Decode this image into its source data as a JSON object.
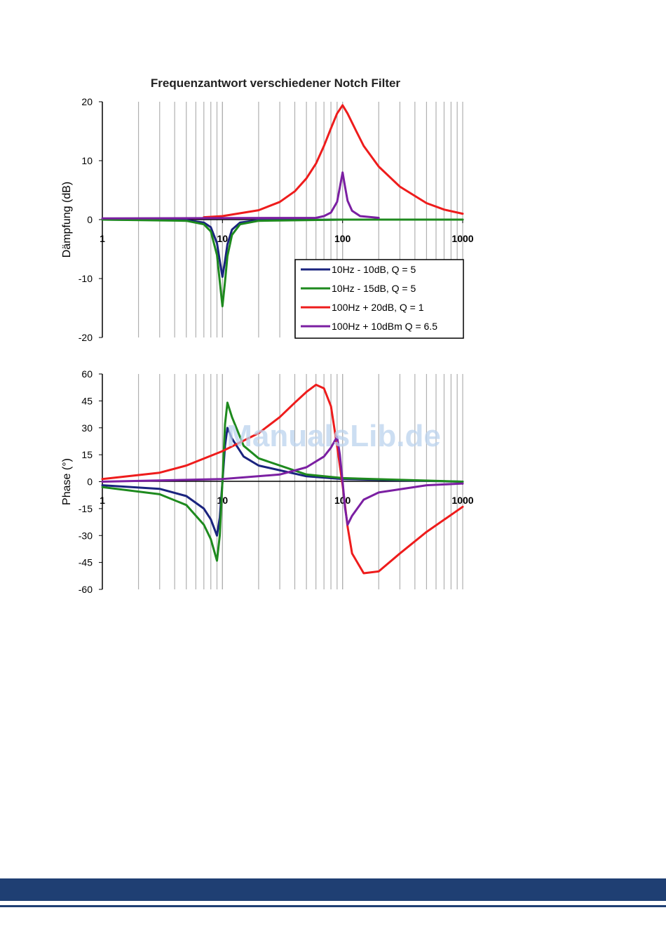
{
  "watermark": "ManualsLib.de",
  "footer": {
    "color": "#1f3f73"
  },
  "chart_data": [
    {
      "type": "line",
      "title": "Frequenzantwort verschiedener Notch Filter",
      "xlabel": "",
      "ylabel": "Dämpfung (dB)",
      "xscale": "log",
      "xlim": [
        1,
        1000
      ],
      "ylim": [
        -20,
        20
      ],
      "xticks": [
        "1",
        "10",
        "100",
        "1000"
      ],
      "yticks": [
        "20",
        "10",
        "0",
        "-10",
        "-20"
      ],
      "grid": true,
      "legend_position": "bottom-right",
      "series": [
        {
          "name": "10Hz - 10dB, Q = 5",
          "color": "#1a237e",
          "x": [
            1,
            5,
            7,
            8,
            9,
            9.5,
            10,
            10.5,
            11,
            12,
            14,
            20,
            100,
            1000
          ],
          "y": [
            0,
            -0.1,
            -0.5,
            -1.3,
            -4.0,
            -7.0,
            -9.7,
            -7.0,
            -4.2,
            -1.7,
            -0.5,
            -0.1,
            0,
            0
          ]
        },
        {
          "name": "10Hz - 15dB, Q = 5",
          "color": "#1e8a1e",
          "x": [
            1,
            5,
            7,
            8,
            9,
            9.5,
            10,
            10.5,
            11,
            12,
            14,
            20,
            100,
            1000
          ],
          "y": [
            0,
            -0.2,
            -0.8,
            -2.0,
            -6.0,
            -10.5,
            -14.7,
            -10.5,
            -6.2,
            -2.6,
            -0.8,
            -0.2,
            0,
            0
          ]
        },
        {
          "name": "100Hz + 20dB, Q = 1",
          "color": "#ee1c1c",
          "x": [
            7,
            10,
            20,
            30,
            40,
            50,
            60,
            70,
            80,
            90,
            100,
            110,
            130,
            150,
            200,
            300,
            500,
            700,
            1000
          ],
          "y": [
            0.4,
            0.6,
            1.6,
            3.0,
            4.8,
            7.0,
            9.5,
            12.5,
            15.5,
            18.0,
            19.4,
            18.0,
            15.0,
            12.5,
            9.0,
            5.6,
            2.8,
            1.7,
            1.0
          ]
        },
        {
          "name": "100Hz + 10dBm Q = 6.5",
          "color": "#7b1fa2",
          "x": [
            1,
            60,
            70,
            80,
            90,
            95,
            100,
            105,
            110,
            120,
            140,
            200
          ],
          "y": [
            0.2,
            0.3,
            0.6,
            1.2,
            3.0,
            5.5,
            8.0,
            5.5,
            3.2,
            1.5,
            0.6,
            0.3
          ]
        }
      ]
    },
    {
      "type": "line",
      "title": "",
      "xlabel": "",
      "ylabel": "Phase (°)",
      "xscale": "log",
      "xlim": [
        1,
        1000
      ],
      "ylim": [
        -60,
        60
      ],
      "xticks": [
        "1",
        "10",
        "100",
        "1000"
      ],
      "yticks": [
        "60",
        "45",
        "30",
        "15",
        "0",
        "-15",
        "-30",
        "-45",
        "-60"
      ],
      "grid": true,
      "series": [
        {
          "name": "10Hz - 10dB, Q = 5",
          "color": "#1a237e",
          "x": [
            1,
            3,
            5,
            7,
            8,
            9,
            9.5,
            10,
            10.5,
            11,
            12,
            15,
            20,
            50,
            100,
            1000
          ],
          "y": [
            -2,
            -4,
            -8,
            -15,
            -21,
            -30,
            -20,
            0,
            20,
            30,
            24,
            14,
            9,
            3,
            1.5,
            0
          ]
        },
        {
          "name": "10Hz - 15dB, Q = 5",
          "color": "#1e8a1e",
          "x": [
            1,
            3,
            5,
            7,
            8,
            9,
            9.5,
            10,
            10.5,
            11,
            12,
            15,
            20,
            50,
            100,
            1000
          ],
          "y": [
            -3,
            -7,
            -13,
            -24,
            -32,
            -44,
            -30,
            0,
            32,
            44,
            36,
            20,
            13,
            4,
            2,
            0
          ]
        },
        {
          "name": "100Hz + 20dB, Q = 1",
          "color": "#ee1c1c",
          "x": [
            1,
            3,
            5,
            10,
            20,
            30,
            40,
            50,
            60,
            70,
            80,
            90,
            100,
            110,
            120,
            150,
            200,
            300,
            500,
            1000
          ],
          "y": [
            1.5,
            5,
            9,
            17,
            27,
            36,
            44,
            50,
            54,
            52,
            42,
            20,
            -2,
            -25,
            -40,
            -51,
            -50,
            -40,
            -28,
            -14
          ]
        },
        {
          "name": "100Hz + 10dBm Q = 6.5",
          "color": "#7b1fa2",
          "x": [
            1,
            10,
            30,
            50,
            70,
            80,
            90,
            95,
            100,
            105,
            110,
            120,
            150,
            200,
            500,
            1000
          ],
          "y": [
            0,
            1.5,
            4,
            8,
            14,
            19,
            25,
            15,
            0,
            -15,
            -24,
            -19,
            -10,
            -6,
            -2,
            -1
          ]
        }
      ]
    }
  ]
}
